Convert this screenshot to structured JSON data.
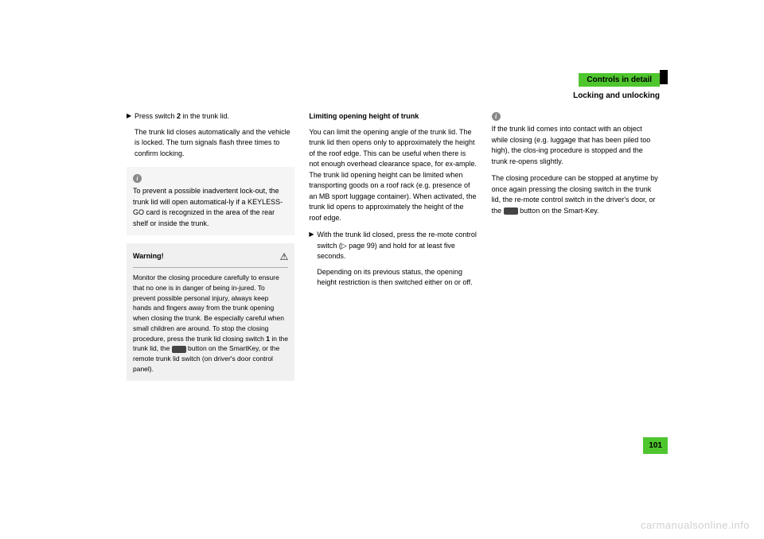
{
  "colors": {
    "accent": "#4fc62e",
    "tab": "#000000",
    "info_bg": "#f5f5f5",
    "warning_bg": "#f0f0f0",
    "info_icon_bg": "#888888",
    "text": "#000000",
    "watermark": "#d0d0d0"
  },
  "header": {
    "title": "Controls in detail",
    "subtitle": "Locking and unlocking"
  },
  "col1": {
    "bullet1_pre": "Press switch ",
    "bullet1_bold": "2",
    "bullet1_post": " in the trunk lid.",
    "sub1": "The trunk lid closes automatically and the vehicle is locked. The turn signals flash three times to confirm locking.",
    "info1": "To prevent a possible inadvertent lock-out, the trunk lid will open automatical-ly if a KEYLESS-GO card is recognized in the area of the rear shelf or inside the trunk.",
    "warning_title": "Warning!",
    "warning_body_pre": "Monitor the closing procedure carefully to ensure that no one is in danger of being in-jured. To prevent possible personal injury, always keep hands and fingers away from the trunk opening when closing the trunk. Be especially careful when small children are around. To stop the closing procedure, press the trunk lid closing switch ",
    "warning_bold": "1",
    "warning_body_mid": " in the trunk lid, the ",
    "warning_body_post": " button on the SmartKey, or the remote trunk lid switch (on driver's door control panel)."
  },
  "col2": {
    "heading": "Limiting opening height of trunk",
    "para1": "You can limit the opening angle of the trunk lid. The trunk lid then opens only to approximately the height of the roof edge. This can be useful when there is not enough overhead clearance space, for ex-ample. The trunk lid opening height can be limited when transporting goods on a roof rack (e.g. presence of an MB sport luggage container). When activated, the trunk lid opens to approximately the height of the roof edge.",
    "bullet1": "With the trunk lid closed, press the re-mote control switch (▷ page 99) and hold for at least five seconds.",
    "sub1": "Depending on its previous status, the opening height restriction is then switched either on or off."
  },
  "col3": {
    "info1": "If the trunk lid comes into contact with an object while closing (e.g. luggage that has been piled too high), the clos-ing procedure is stopped and the trunk re-opens slightly.",
    "info2_pre": "The closing procedure can be stopped at anytime by once again pressing the closing switch in the trunk lid, the re-mote control switch in the driver's door, or the ",
    "info2_post": " button on the Smart-Key."
  },
  "page_number": "101",
  "watermark": "carmanualsonline.info"
}
